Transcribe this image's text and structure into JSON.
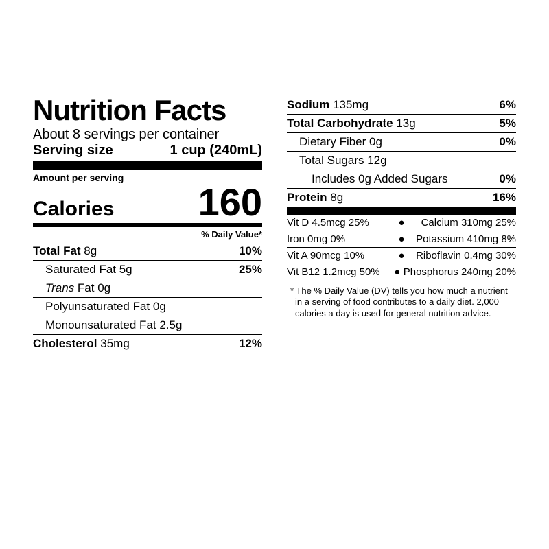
{
  "title": "Nutrition Facts",
  "servings_per_container": "About 8 servings per container",
  "serving_size_label": "Serving size",
  "serving_size_value": "1 cup (240mL)",
  "amount_per_serving_label": "Amount per serving",
  "calories_label": "Calories",
  "calories_value": "160",
  "dv_header": "% Daily Value*",
  "left_nutrients": [
    {
      "name_bold": "Total Fat",
      "amount": "8g",
      "dv": "10%",
      "indent": 0,
      "bold": true
    },
    {
      "name": "Saturated Fat",
      "amount": "5g",
      "dv": "25%",
      "indent": 1
    },
    {
      "name_italic": "Trans",
      "name_rest": " Fat",
      "amount": "0g",
      "dv": "",
      "indent": 1
    },
    {
      "name": "Polyunsaturated Fat",
      "amount": "0g",
      "dv": "",
      "indent": 1
    },
    {
      "name": "Monounsaturated Fat",
      "amount": "2.5g",
      "dv": "",
      "indent": 1
    },
    {
      "name_bold": "Cholesterol",
      "amount": "35mg",
      "dv": "12%",
      "indent": 0,
      "bold": true,
      "last": true
    }
  ],
  "right_nutrients": [
    {
      "name_bold": "Sodium",
      "amount": "135mg",
      "dv": "6%",
      "indent": 0,
      "bold": true
    },
    {
      "name_bold": "Total Carbohydrate",
      "amount": "13g",
      "dv": "5%",
      "indent": 0,
      "bold": true
    },
    {
      "name": "Dietary Fiber",
      "amount": "0g",
      "dv": "0%",
      "indent": 1
    },
    {
      "name": "Total Sugars",
      "amount": "12g",
      "dv": "",
      "indent": 1
    },
    {
      "name": "Includes 0g Added Sugars",
      "amount": "",
      "dv": "0%",
      "indent": 2
    },
    {
      "name_bold": "Protein",
      "amount": "8g",
      "dv": "16%",
      "indent": 0,
      "bold": true,
      "thick_after": true
    }
  ],
  "micros": [
    {
      "left": "Vit D 4.5mcg 25%",
      "right": "Calcium 310mg 25%"
    },
    {
      "left": "Iron 0mg 0%",
      "right": "Potassium 410mg 8%"
    },
    {
      "left": "Vit A 90mcg 10%",
      "right": "Riboflavin 0.4mg 30%"
    },
    {
      "left": "Vit B12 1.2mcg 50%",
      "right": "Phosphorus 240mg 20%"
    }
  ],
  "footnote": "* The % Daily Value (DV) tells you how much a nutrient in a serving of food contributes to a daily diet. 2,000 calories a day is used for general nutrition advice."
}
